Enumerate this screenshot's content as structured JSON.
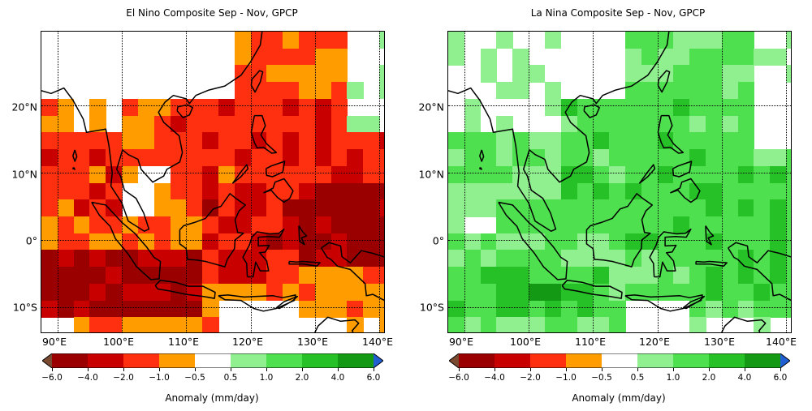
{
  "panels": [
    {
      "id": "elnino",
      "title": "El Nino Composite Sep - Nov, GPCP",
      "pattern": "elnino"
    },
    {
      "id": "lanina",
      "title": "La Nina Composite Sep - Nov, GPCP",
      "pattern": "lanina"
    }
  ],
  "map": {
    "lon_range": [
      87.5,
      141.0
    ],
    "lat_range": [
      -14.0,
      31.0
    ],
    "lat_labels": [
      {
        "value": 20,
        "text": "20°N"
      },
      {
        "value": 10,
        "text": "10°N"
      },
      {
        "value": 0,
        "text": "0°"
      },
      {
        "value": -10,
        "text": "10°S"
      }
    ],
    "lon_labels": [
      {
        "value": 90,
        "text": "90°E"
      },
      {
        "value": 100,
        "text": "100°E"
      },
      {
        "value": 110,
        "text": "110°E"
      },
      {
        "value": 120,
        "text": "120°E"
      },
      {
        "value": 130,
        "text": "130°E"
      },
      {
        "value": 140,
        "text": "140°E"
      }
    ],
    "grid_lons": [
      90,
      100,
      110,
      120,
      130,
      140
    ],
    "grid_lats": [
      20,
      10,
      0,
      -10
    ],
    "cell_size_deg": 2.5
  },
  "colorbar": {
    "label": "Anomaly (mm/day)",
    "tick_labels": [
      "−6.0",
      "−4.0",
      "−2.0",
      "−1.0",
      "−0.5",
      "0.5",
      "1.0",
      "2.0",
      "4.0",
      "6.0"
    ],
    "under_color": "#7a4a30",
    "over_color": "#1f5fd1",
    "colors": [
      "#9a0000",
      "#c90000",
      "#ff3010",
      "#ff9c00",
      "#ffffff",
      "#90f090",
      "#4ee04e",
      "#26c126",
      "#139913"
    ]
  },
  "class_colors": {
    "-4": "#9a0000",
    "-3": "#c90000",
    "-2": "#ff3010",
    "-1": "#ff9c00",
    "0": "#ffffff",
    "1": "#90f090",
    "2": "#4ee04e",
    "3": "#26c126",
    "4": "#139913"
  }
}
